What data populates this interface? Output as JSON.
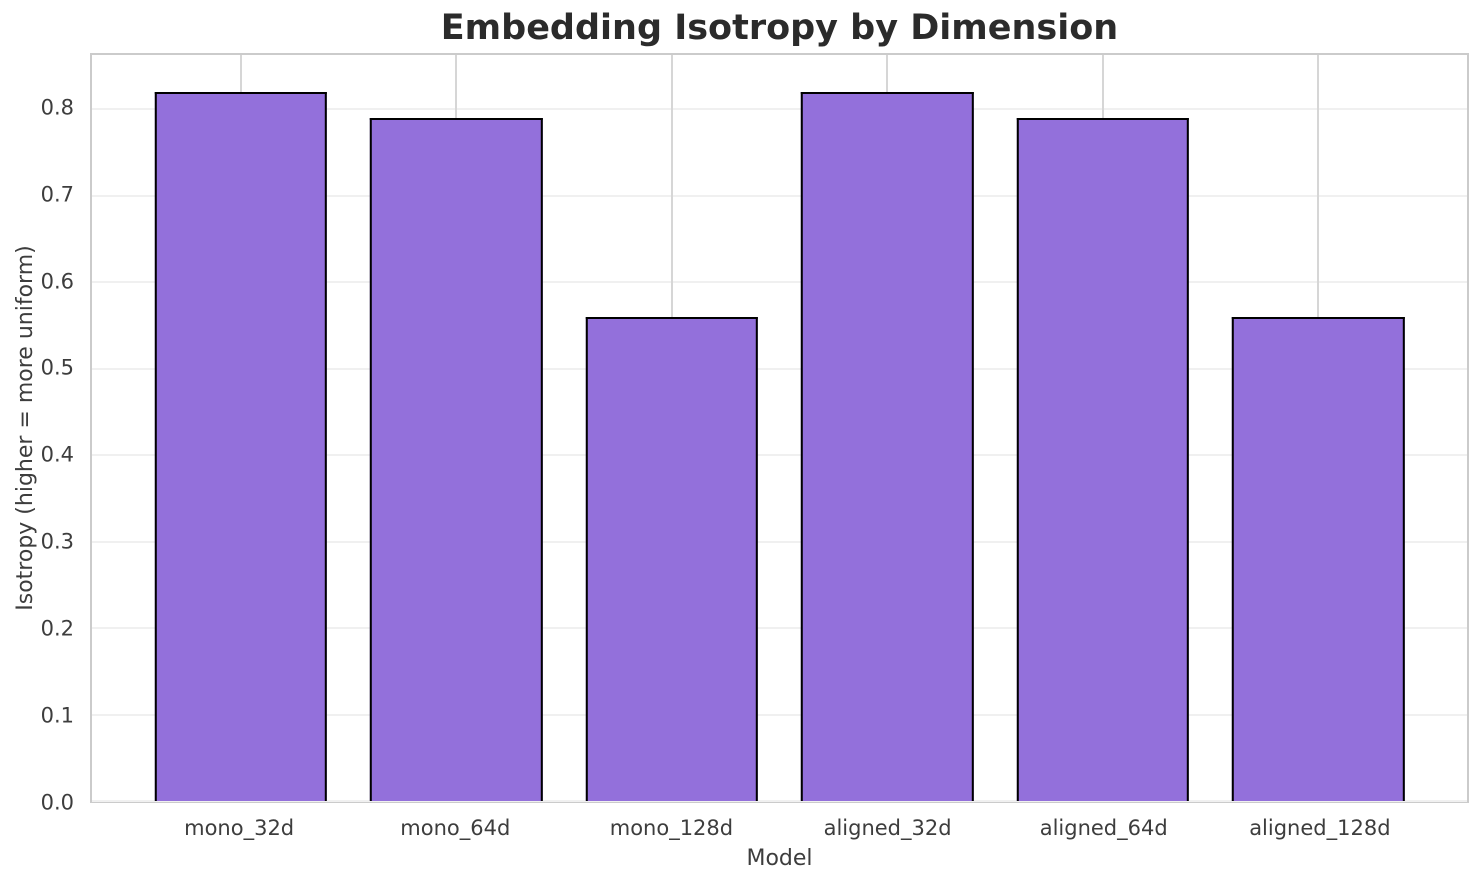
{
  "chart_data": {
    "type": "bar",
    "title": "Embedding Isotropy by Dimension",
    "xlabel": "Model",
    "ylabel": "Isotropy (higher = more uniform)",
    "categories": [
      "mono_32d",
      "mono_64d",
      "mono_128d",
      "aligned_32d",
      "aligned_64d",
      "aligned_128d"
    ],
    "values": [
      0.82,
      0.79,
      0.56,
      0.82,
      0.79,
      0.56
    ],
    "yticks": [
      0.0,
      0.1,
      0.2,
      0.3,
      0.4,
      0.5,
      0.6,
      0.7,
      0.8
    ],
    "ylim": [
      0,
      0.863
    ],
    "xlim": [
      -0.69,
      5.69
    ],
    "bar_width": 0.8,
    "grid": true,
    "legend": "none",
    "bar_color": "#9370DB",
    "bar_edge_color": "#000000"
  },
  "colors": {
    "background": "#ffffff",
    "bar_fill": "#9370DB",
    "bar_edge": "#000000",
    "h_gridline": "#f0f0f0",
    "v_gridline": "#d6d6d6",
    "spine": "#cbcbcb",
    "title_text": "#2b2b2b",
    "tick_text": "#3d3d3d"
  }
}
